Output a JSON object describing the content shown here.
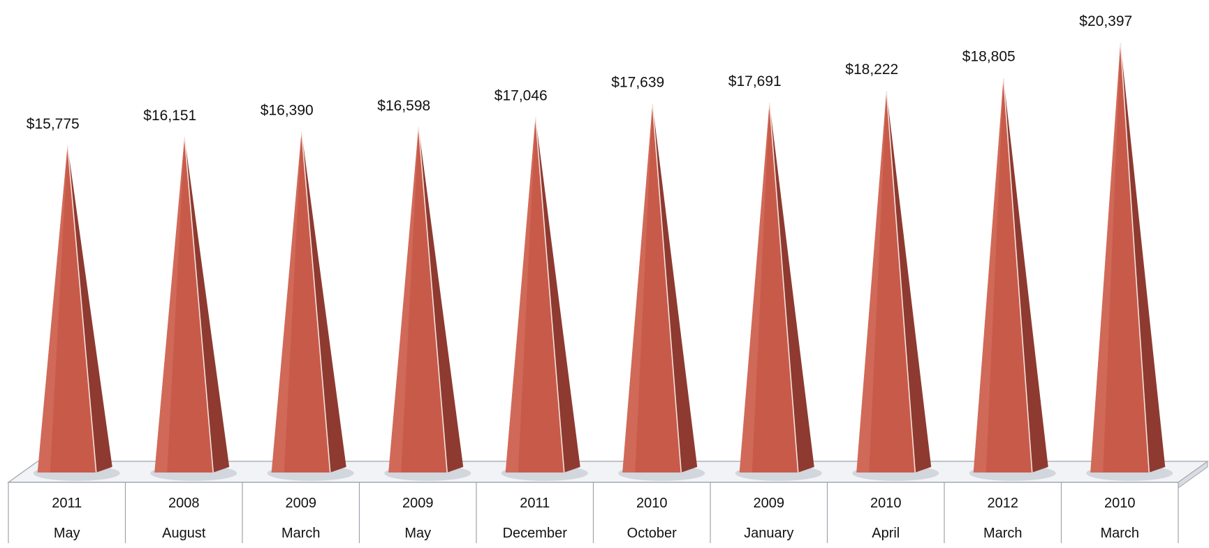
{
  "chart_data": {
    "type": "bar",
    "bar_shape": "pyramid",
    "categories": [
      {
        "year": "2011",
        "month": "May"
      },
      {
        "year": "2008",
        "month": "August"
      },
      {
        "year": "2009",
        "month": "March"
      },
      {
        "year": "2009",
        "month": "May"
      },
      {
        "year": "2011",
        "month": "December"
      },
      {
        "year": "2010",
        "month": "October"
      },
      {
        "year": "2009",
        "month": "January"
      },
      {
        "year": "2010",
        "month": "April"
      },
      {
        "year": "2012",
        "month": "March"
      },
      {
        "year": "2010",
        "month": "March"
      }
    ],
    "values": [
      15775,
      16151,
      16390,
      16598,
      17046,
      17639,
      17691,
      18222,
      18805,
      20397
    ],
    "data_labels": [
      "$15,775",
      "$16,151",
      "$16,390",
      "$16,598",
      "$17,046",
      "$17,639",
      "$17,691",
      "$18,222",
      "$18,805",
      "$20,397"
    ],
    "title": "",
    "xlabel": "",
    "ylabel": "",
    "legend": "none",
    "grid": false,
    "colors": {
      "bar_front": "#c85a4a",
      "bar_light": "#d46f5e",
      "bar_side": "#8e3a30",
      "edge": "#f4e2dc",
      "floor": "#f2f3f6",
      "floor_edge": "#9ea3ab",
      "shadow": "#b8bdc8"
    }
  }
}
